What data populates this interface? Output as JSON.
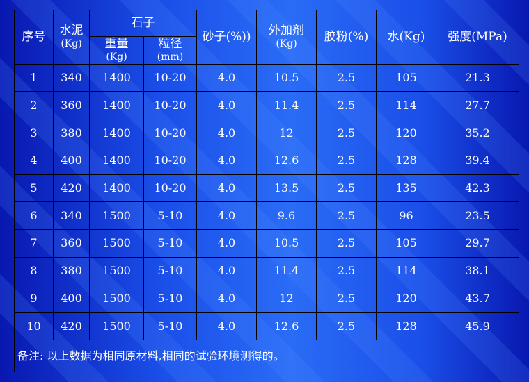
{
  "headers": {
    "index": "序号",
    "cement": "水泥",
    "cement_unit": "(Kg)",
    "stone": "石子",
    "stone_weight": "重量",
    "stone_weight_unit": "(Kg)",
    "stone_size": "粒径",
    "stone_size_unit": "(mm)",
    "sand": "砂子(%))",
    "admixture": "外加剂",
    "admixture_unit": "(Kg)",
    "rubber_powder": "胶粉(%)",
    "water": "水(Kg)",
    "strength": "强度(MPa)"
  },
  "rows": [
    {
      "index": "1",
      "cement": "340",
      "weight": "1400",
      "size": "10-20",
      "sand": "4.0",
      "admixture": "10.5",
      "powder": "2.5",
      "water": "105",
      "strength": "21.3"
    },
    {
      "index": "2",
      "cement": "360",
      "weight": "1400",
      "size": "10-20",
      "sand": "4.0",
      "admixture": "11.4",
      "powder": "2.5",
      "water": "114",
      "strength": "27.7"
    },
    {
      "index": "3",
      "cement": "380",
      "weight": "1400",
      "size": "10-20",
      "sand": "4.0",
      "admixture": "12",
      "powder": "2.5",
      "water": "120",
      "strength": "35.2"
    },
    {
      "index": "4",
      "cement": "400",
      "weight": "1400",
      "size": "10-20",
      "sand": "4.0",
      "admixture": "12.6",
      "powder": "2.5",
      "water": "128",
      "strength": "39.4"
    },
    {
      "index": "5",
      "cement": "420",
      "weight": "1400",
      "size": "10-20",
      "sand": "4.0",
      "admixture": "13.5",
      "powder": "2.5",
      "water": "135",
      "strength": "42.3"
    },
    {
      "index": "6",
      "cement": "340",
      "weight": "1500",
      "size": "5-10",
      "sand": "4.0",
      "admixture": "9.6",
      "powder": "2.5",
      "water": "96",
      "strength": "23.5"
    },
    {
      "index": "7",
      "cement": "360",
      "weight": "1500",
      "size": "5-10",
      "sand": "4.0",
      "admixture": "10.5",
      "powder": "2.5",
      "water": "105",
      "strength": "29.7"
    },
    {
      "index": "8",
      "cement": "380",
      "weight": "1500",
      "size": "5-10",
      "sand": "4.0",
      "admixture": "11.4",
      "powder": "2.5",
      "water": "114",
      "strength": "38.1"
    },
    {
      "index": "9",
      "cement": "400",
      "weight": "1500",
      "size": "5-10",
      "sand": "4.0",
      "admixture": "12",
      "powder": "2.5",
      "water": "120",
      "strength": "43.7"
    },
    {
      "index": "10",
      "cement": "420",
      "weight": "1500",
      "size": "5-10",
      "sand": "4.0",
      "admixture": "12.6",
      "powder": "2.5",
      "water": "128",
      "strength": "45.9"
    }
  ],
  "note": "备注: 以上数据为相同原材料,相同的试验环境测得的。"
}
